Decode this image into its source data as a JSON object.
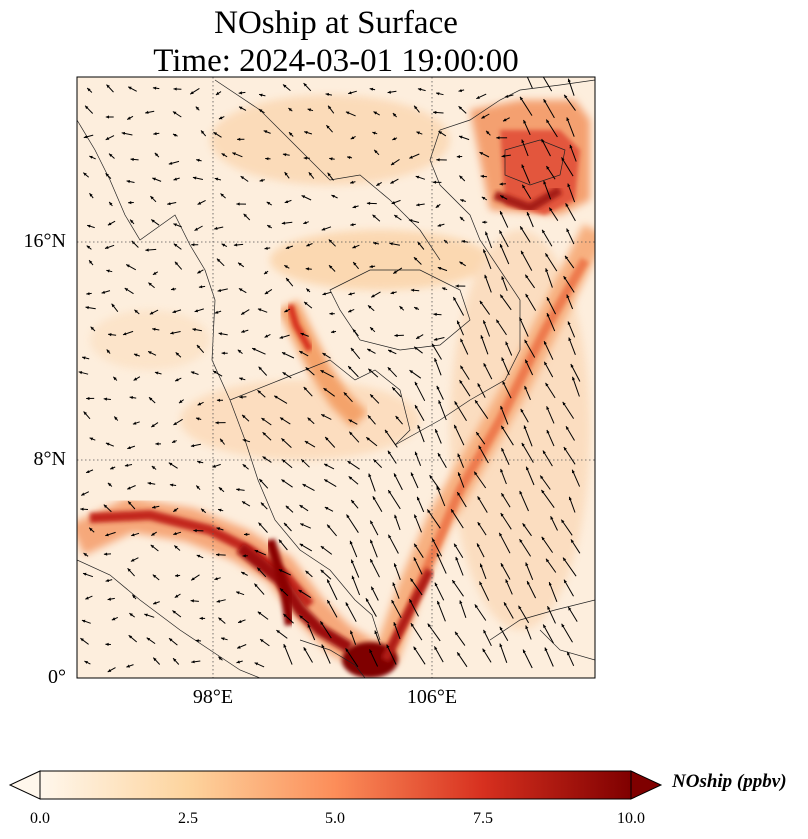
{
  "figure": {
    "title_line1": "NOship at Surface",
    "title_line2": "Time: 2024-03-01 19:00:00"
  },
  "map": {
    "lat_labels": [
      "16°N",
      "8°N",
      "0°"
    ],
    "lon_labels": [
      "98°E",
      "106°E"
    ],
    "lat_extent": [
      0,
      22
    ],
    "lon_extent": [
      93,
      112
    ],
    "gridlines": "dotted",
    "wind_vectors": "on"
  },
  "colorbar": {
    "label": "NOship (ppbv)",
    "ticks": [
      "0.0",
      "2.5",
      "5.0",
      "7.5",
      "10.0"
    ],
    "range": [
      0,
      10
    ],
    "colormap": "OrRd",
    "extend": "both",
    "colors": [
      "#fff7ec",
      "#fdd49e",
      "#fc8d59",
      "#d7301f",
      "#7f0000"
    ]
  }
}
